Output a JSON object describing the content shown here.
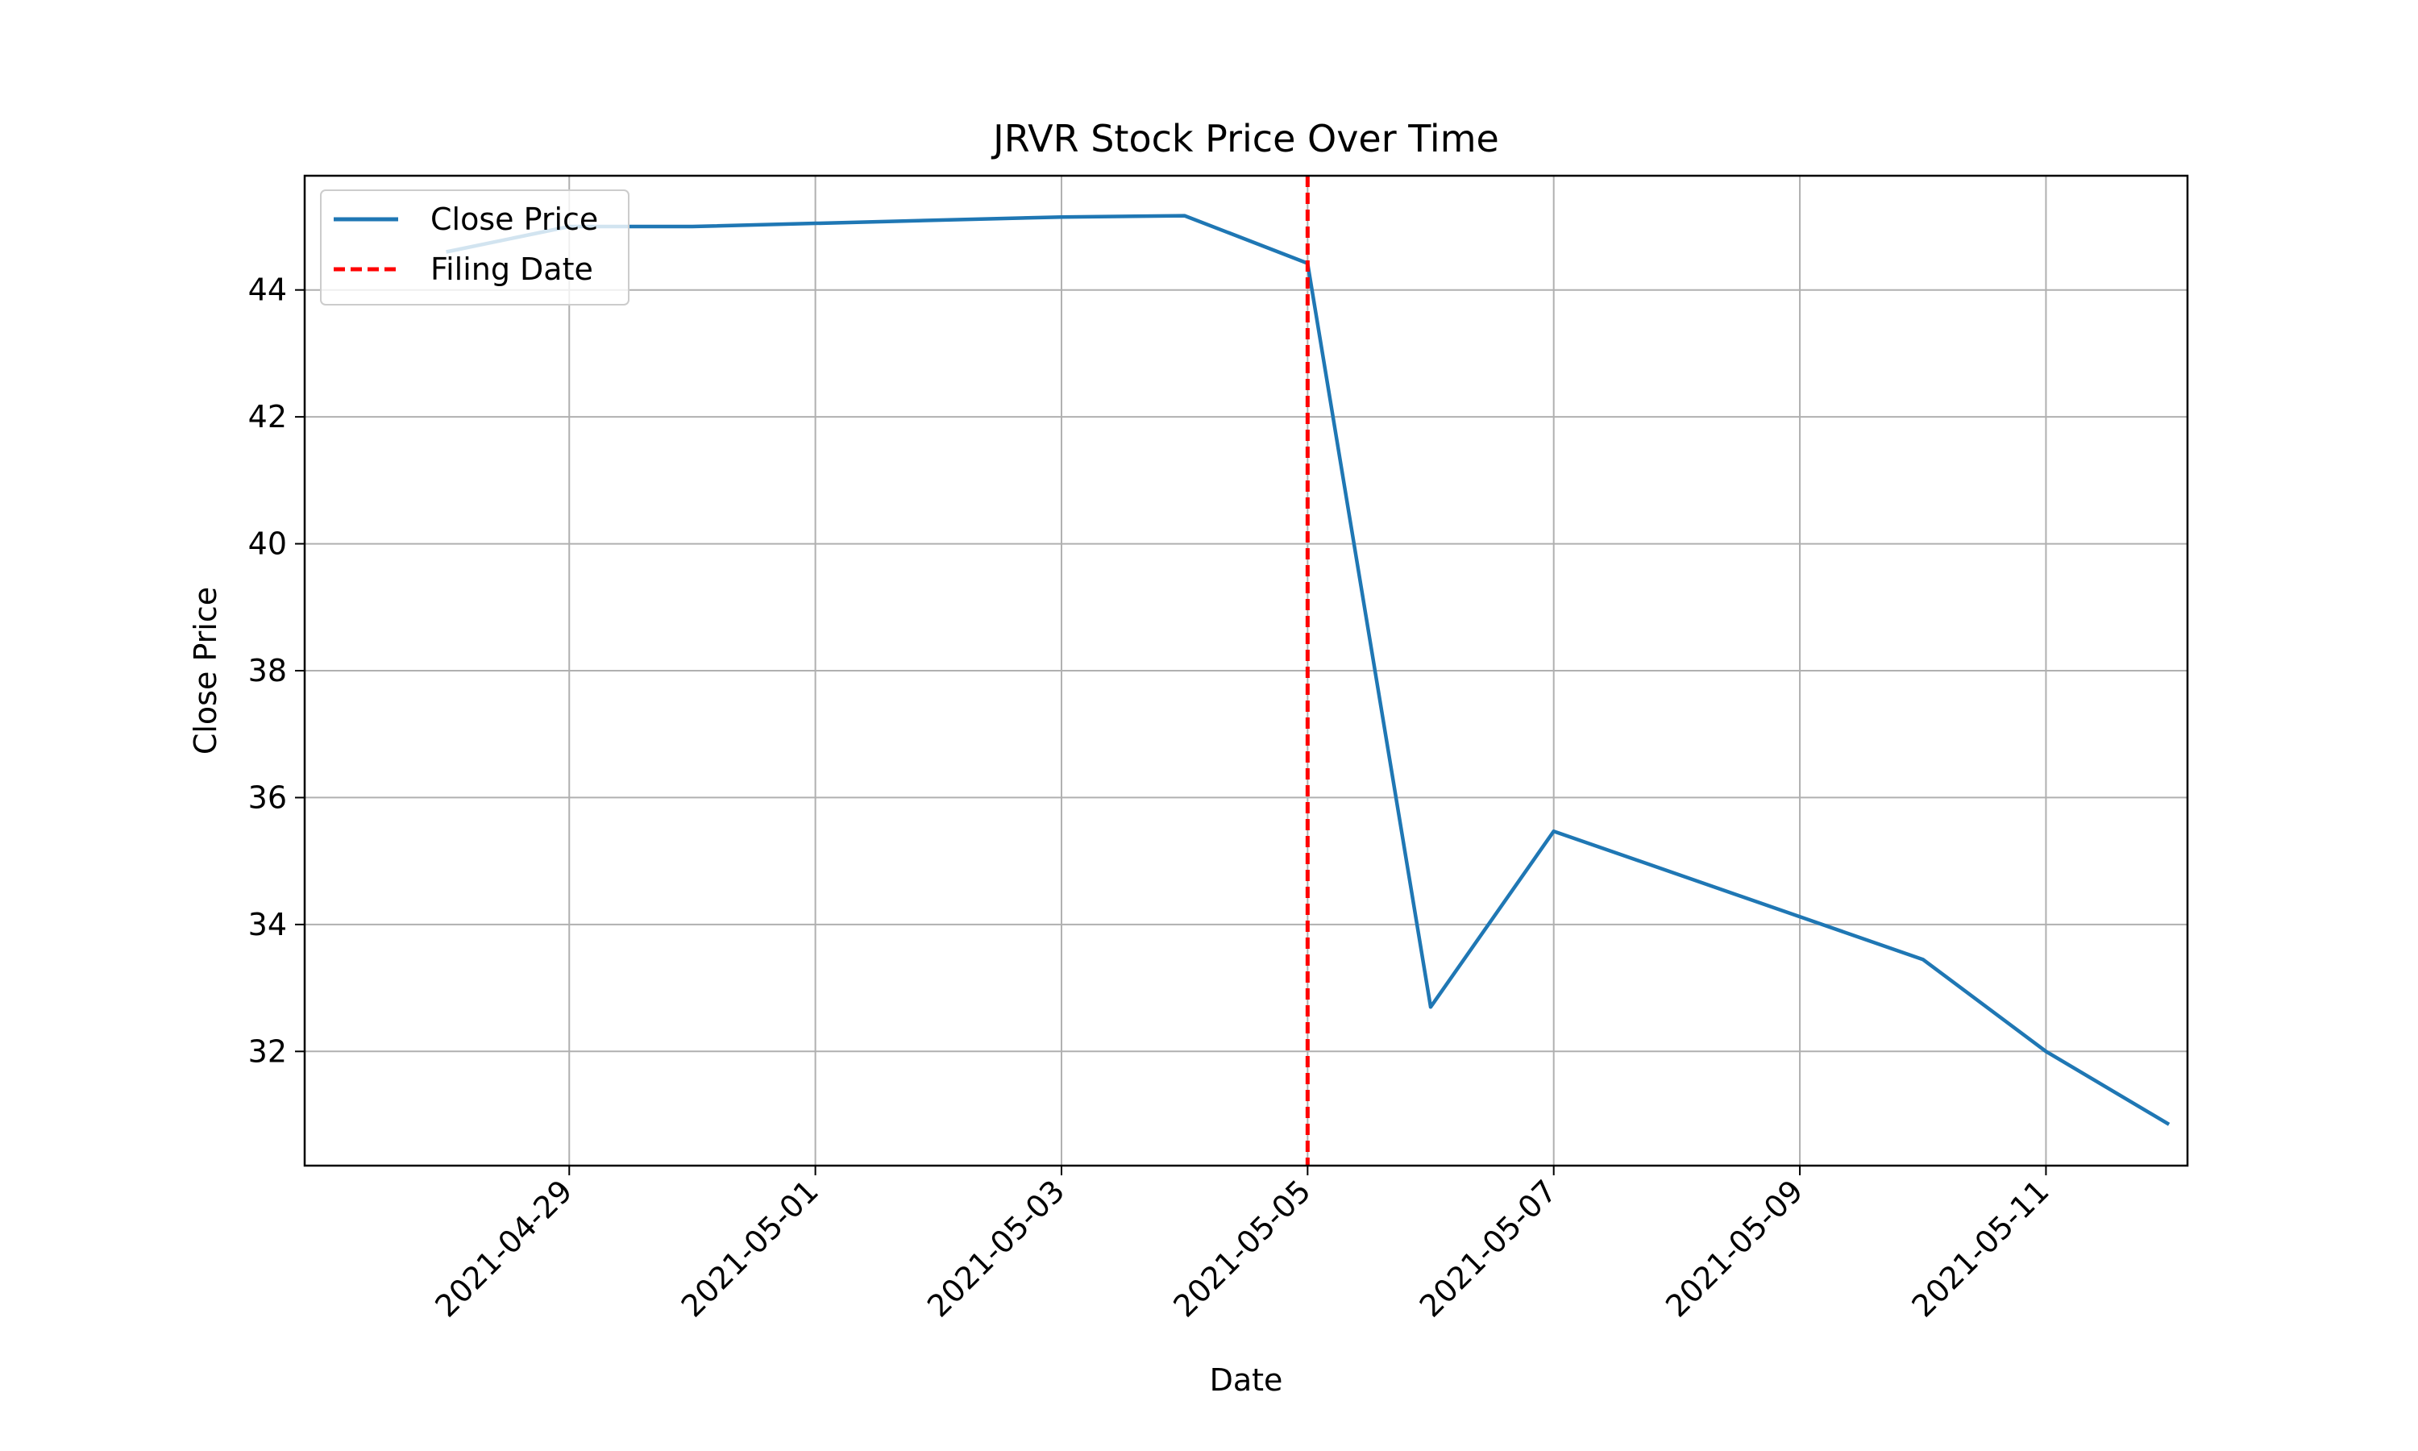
{
  "chart_data": {
    "type": "line",
    "title": "JRVR Stock Price Over Time",
    "xlabel": "Date",
    "ylabel": "Close Price",
    "x_type": "date",
    "xlim": [
      "2021-04-27",
      "2021-05-12"
    ],
    "ylim": [
      30.2,
      45.8
    ],
    "grid": true,
    "legend_placement": "upper-left",
    "x_ticks": [
      "2021-04-29",
      "2021-05-01",
      "2021-05-03",
      "2021-05-05",
      "2021-05-07",
      "2021-05-09",
      "2021-05-11"
    ],
    "y_ticks": [
      32,
      34,
      36,
      38,
      40,
      42,
      44
    ],
    "series": [
      {
        "name": "Close Price",
        "color": "#1f77b4",
        "style": "solid",
        "points": [
          {
            "x": "2021-04-28",
            "y": 44.6
          },
          {
            "x": "2021-04-29",
            "y": 45.0
          },
          {
            "x": "2021-04-30",
            "y": 45.0
          },
          {
            "x": "2021-05-03",
            "y": 45.15
          },
          {
            "x": "2021-05-04",
            "y": 45.17
          },
          {
            "x": "2021-05-05",
            "y": 44.42
          },
          {
            "x": "2021-05-06",
            "y": 32.7
          },
          {
            "x": "2021-05-07",
            "y": 35.47
          },
          {
            "x": "2021-05-10",
            "y": 33.45
          },
          {
            "x": "2021-05-11",
            "y": 32.0
          },
          {
            "x": "2021-05-12",
            "y": 30.85
          }
        ]
      }
    ],
    "annotations": [
      {
        "name": "Filing Date",
        "type": "vline",
        "x": "2021-05-05",
        "color": "#ff0000",
        "style": "dashed"
      }
    ]
  }
}
